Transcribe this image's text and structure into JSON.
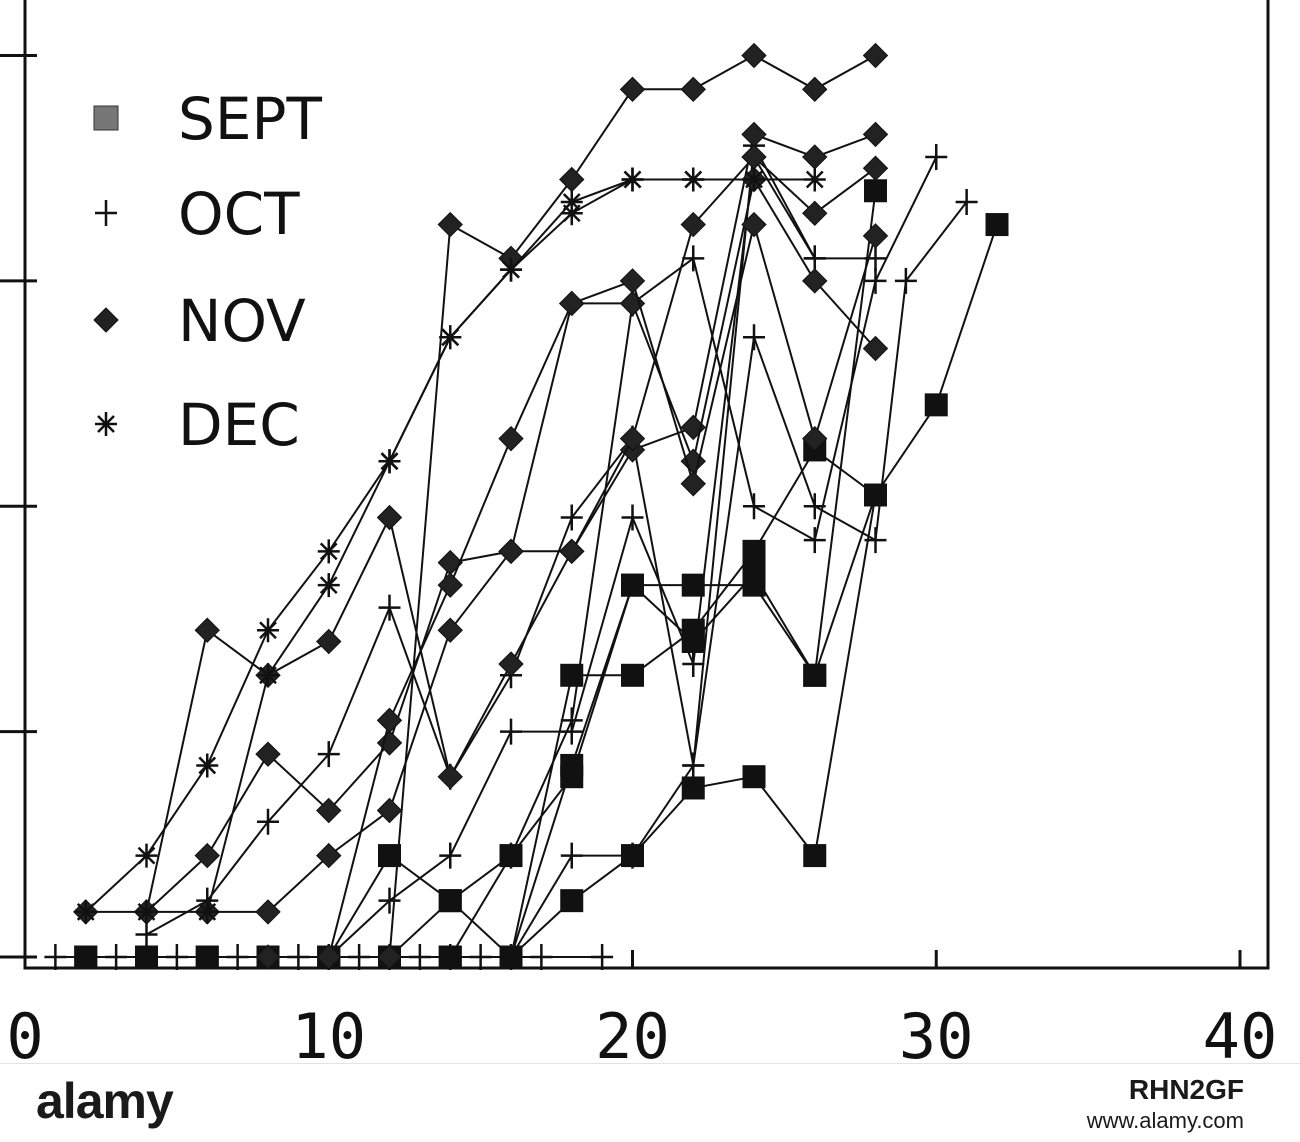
{
  "chart_data": {
    "type": "line",
    "title": "",
    "xlabel": "",
    "ylabel": "",
    "xlim": [
      0,
      40
    ],
    "ylim": [
      0,
      8.2
    ],
    "x_ticks": [
      0,
      10,
      20,
      30,
      40
    ],
    "x_tick_labels": [
      "0",
      "10",
      "20",
      "30",
      "40"
    ],
    "y_ticks": [
      0,
      2,
      4,
      6,
      8
    ],
    "y_tick_labels": [
      "",
      "",
      "",
      "",
      ""
    ],
    "grid": false,
    "legend": {
      "position": "top-left",
      "entries": [
        {
          "label": "SEPT",
          "marker": "square"
        },
        {
          "label": "OCT",
          "marker": "plus"
        },
        {
          "label": "NOV",
          "marker": "diamond"
        },
        {
          "label": "DEC",
          "marker": "asterisk"
        }
      ]
    },
    "series": [
      {
        "group": "SEPT",
        "x": [
          2,
          4,
          6,
          8,
          10,
          12,
          14,
          16,
          18,
          20,
          22,
          24,
          26,
          28
        ],
        "y": [
          0,
          0,
          0,
          0,
          0,
          0.9,
          0.5,
          0.9,
          1.6,
          3.3,
          3.3,
          3.3,
          2.5,
          4.1
        ]
      },
      {
        "group": "SEPT",
        "x": [
          2,
          4,
          6,
          8,
          10,
          12,
          14,
          16,
          18,
          20,
          22,
          24,
          26,
          28
        ],
        "y": [
          0,
          0,
          0,
          0,
          0,
          0,
          0.5,
          0,
          0.5,
          0.9,
          1.5,
          1.6,
          0.9,
          4.1
        ]
      },
      {
        "group": "SEPT",
        "x": [
          10,
          12,
          14,
          16,
          18,
          20,
          22,
          24,
          26,
          28,
          30,
          32
        ],
        "y": [
          0,
          0,
          0,
          0,
          2.5,
          2.5,
          2.9,
          3.6,
          4.5,
          4.1,
          4.9,
          6.5
        ]
      },
      {
        "group": "SEPT",
        "x": [
          14,
          16,
          18,
          20,
          22,
          24,
          26,
          28
        ],
        "y": [
          0,
          0,
          1.7,
          3.3,
          2.8,
          3.4,
          2.5,
          6.8
        ]
      },
      {
        "group": "OCT",
        "x": [
          1,
          3,
          5,
          7,
          9,
          11,
          13,
          15,
          17,
          19
        ],
        "y": [
          0,
          0,
          0,
          0,
          0,
          0,
          0,
          0,
          0,
          0
        ]
      },
      {
        "group": "OCT",
        "x": [
          4,
          6,
          8,
          10,
          12,
          14,
          16,
          18,
          20,
          22,
          24,
          26
        ],
        "y": [
          0.2,
          0.5,
          1.2,
          1.8,
          3.1,
          1.6,
          2.5,
          3.9,
          4.6,
          1.7,
          7.2,
          6.2
        ]
      },
      {
        "group": "OCT",
        "x": [
          10,
          12,
          14,
          16,
          18,
          20,
          22,
          24,
          26,
          28
        ],
        "y": [
          0,
          0.5,
          0.9,
          2.0,
          2.0,
          3.9,
          2.6,
          7.1,
          6.2,
          6.2
        ]
      },
      {
        "group": "OCT",
        "x": [
          12,
          14,
          16,
          18,
          20,
          22,
          24,
          26,
          28,
          30
        ],
        "y": [
          0,
          0,
          0.9,
          2.1,
          5.8,
          6.2,
          4.0,
          3.7,
          6.0,
          7.1
        ]
      },
      {
        "group": "OCT",
        "x": [
          16,
          18,
          20,
          22,
          24,
          26,
          28,
          29,
          31
        ],
        "y": [
          0,
          0.9,
          0.9,
          1.7,
          5.5,
          4.0,
          3.7,
          6.0,
          6.7
        ]
      },
      {
        "group": "NOV",
        "x": [
          2,
          4,
          6,
          8,
          10,
          12,
          14,
          16,
          18,
          20,
          22,
          24,
          26,
          28
        ],
        "y": [
          0.4,
          0.4,
          2.9,
          2.5,
          2.8,
          3.9,
          1.6,
          2.6,
          3.6,
          4.5,
          4.7,
          7.3,
          7.1,
          7.3
        ]
      },
      {
        "group": "NOV",
        "x": [
          4,
          6,
          8,
          10,
          12,
          14,
          16,
          18,
          20,
          22,
          24,
          26,
          28
        ],
        "y": [
          0.4,
          0.9,
          1.8,
          1.3,
          1.9,
          3.5,
          3.6,
          5.8,
          5.8,
          4.4,
          6.9,
          6.0,
          5.4
        ]
      },
      {
        "group": "NOV",
        "x": [
          6,
          8,
          10,
          12,
          14,
          16,
          18,
          20,
          22,
          24,
          26,
          28
        ],
        "y": [
          0.4,
          0.4,
          0.9,
          1.3,
          2.9,
          3.6,
          3.6,
          4.6,
          6.5,
          7.1,
          6.6,
          7.0
        ]
      },
      {
        "group": "NOV",
        "x": [
          8,
          10,
          12,
          14,
          16,
          18,
          20,
          22,
          24,
          26,
          28
        ],
        "y": [
          0,
          0,
          2.1,
          3.3,
          4.6,
          5.8,
          6.0,
          4.2,
          6.5,
          4.6,
          6.4
        ]
      },
      {
        "group": "NOV",
        "x": [
          12,
          14,
          16,
          18,
          20,
          22,
          24,
          26,
          28
        ],
        "y": [
          0,
          6.5,
          6.2,
          6.9,
          7.7,
          7.7,
          8.0,
          7.7,
          8.0
        ]
      },
      {
        "group": "DEC",
        "x": [
          2,
          4,
          6,
          8,
          10,
          12,
          14,
          16,
          18,
          20,
          22,
          24,
          26
        ],
        "y": [
          0.4,
          0.9,
          1.7,
          2.9,
          3.6,
          4.4,
          5.5,
          6.1,
          6.7,
          6.9,
          6.9,
          6.9,
          6.9
        ]
      },
      {
        "group": "DEC",
        "x": [
          4,
          6,
          8,
          10,
          12,
          14,
          16,
          18,
          20,
          22
        ],
        "y": [
          0.4,
          0.4,
          2.5,
          3.3,
          4.4,
          5.5,
          6.1,
          6.6,
          6.9,
          6.9
        ]
      }
    ]
  },
  "footer": {
    "brand": "alamy",
    "image_id": "RHN2GF",
    "site": "www.alamy.com"
  }
}
